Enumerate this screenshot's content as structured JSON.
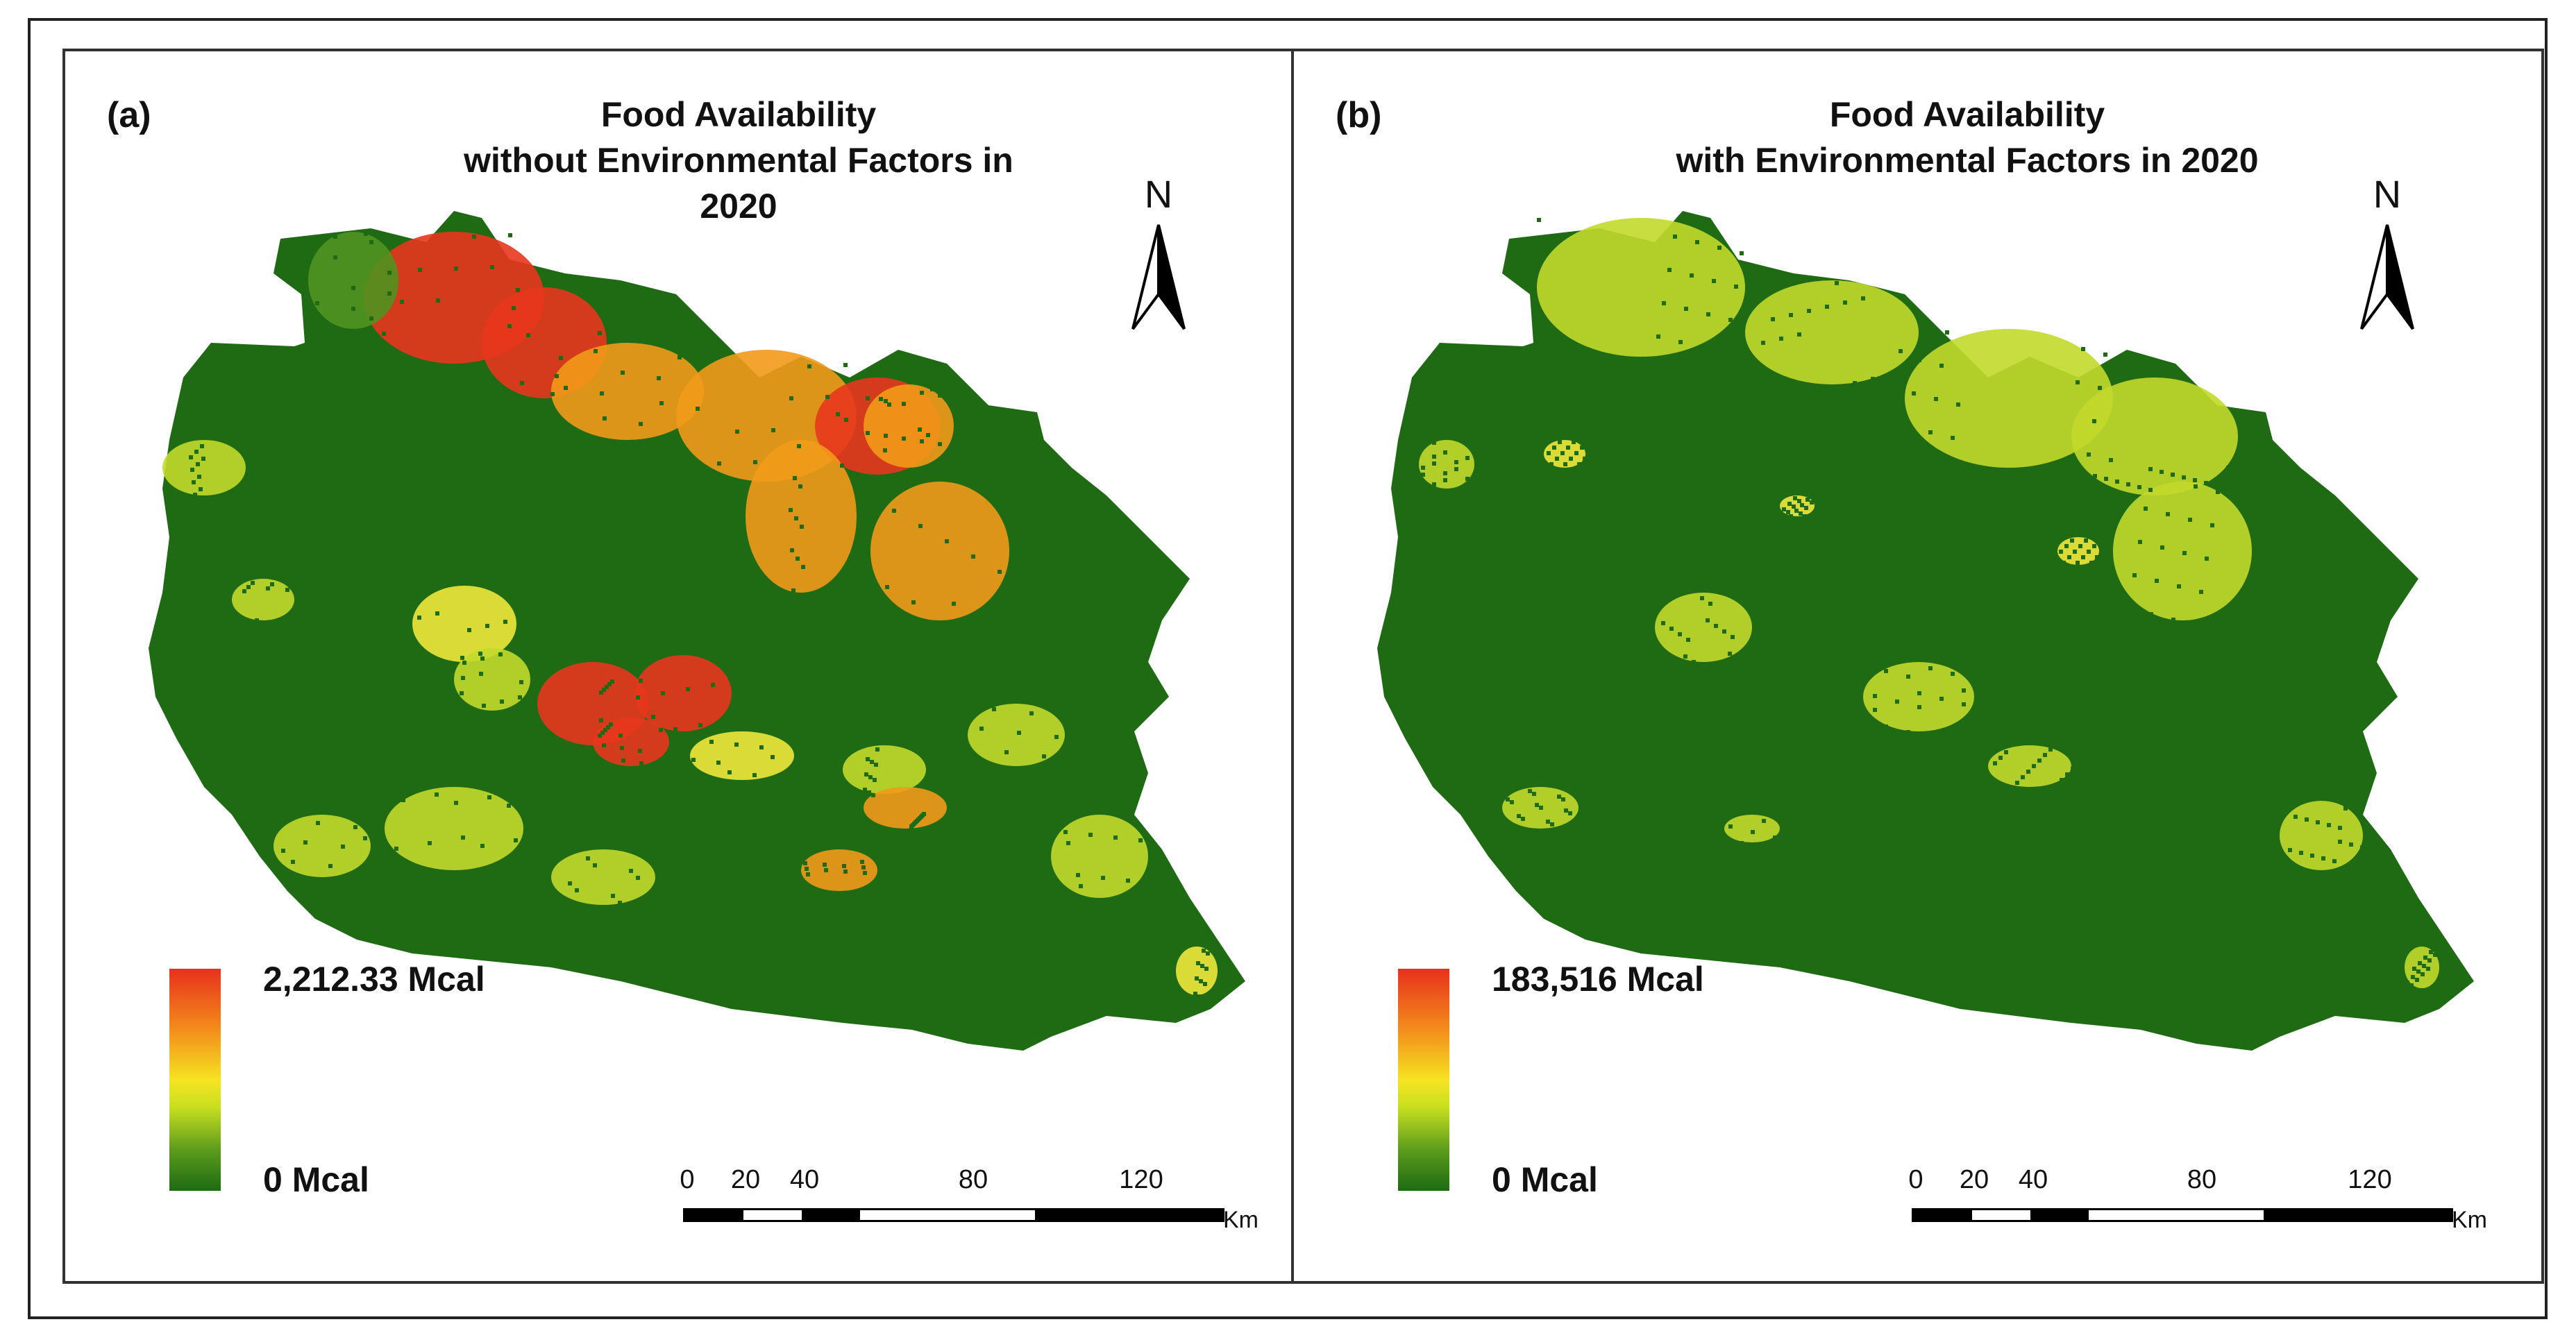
{
  "panels": [
    {
      "label": "(a)",
      "title_line1": "Food Availability",
      "title_line2": "without Environmental Factors in 2020",
      "legend_max": "2,212.33 Mcal",
      "legend_min": "0 Mcal",
      "hotspots": "high"
    },
    {
      "label": "(b)",
      "title_line1": "Food Availability",
      "title_line2": "with Environmental Factors in 2020",
      "legend_max": "183,516 Mcal",
      "legend_min": "0 Mcal",
      "hotspots": "low"
    }
  ],
  "north_label": "N",
  "scale": {
    "ticks": [
      "0",
      "20",
      "40",
      "80",
      "120"
    ],
    "unit": "Km"
  },
  "colors": {
    "base_green": "#1f6b14",
    "mid_green": "#4f9320",
    "yellow_green": "#c2d92a",
    "yellow": "#eee83a",
    "orange": "#f29a1a",
    "red": "#e8361d"
  },
  "legend_ramp": [
    "#e8311c",
    "#f2841b",
    "#f6e321",
    "#c9e01f",
    "#5a9a1c",
    "#1f6b14"
  ]
}
